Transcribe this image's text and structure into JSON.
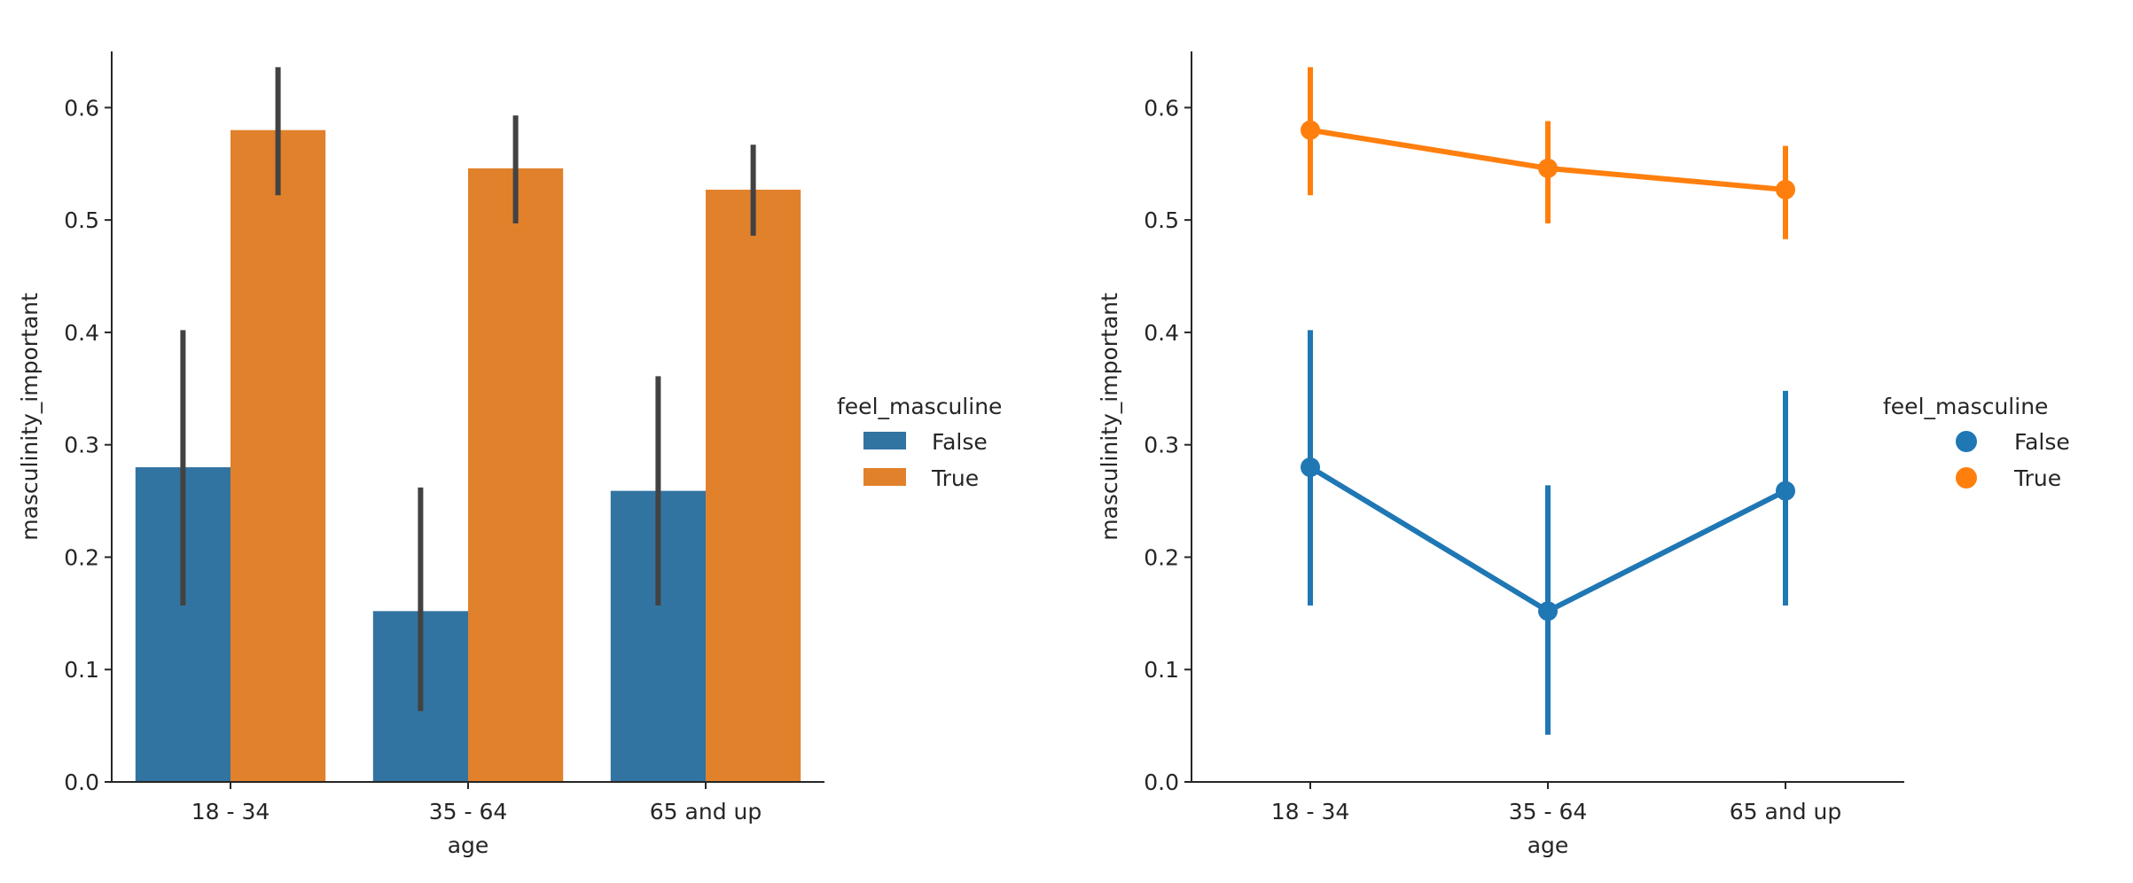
{
  "chart_data": [
    {
      "type": "bar",
      "title": "",
      "xlabel": "age",
      "ylabel": "masculinity_important",
      "categories": [
        "18 - 34",
        "35 - 64",
        "65 and up"
      ],
      "ylim": [
        0,
        0.65
      ],
      "yticks": [
        0.0,
        0.1,
        0.2,
        0.3,
        0.4,
        0.5,
        0.6
      ],
      "error_bars": true,
      "legend": {
        "title": "feel_masculine",
        "placement": "center-right"
      },
      "series": [
        {
          "name": "False",
          "color": "#3274a1",
          "values": [
            0.28,
            0.152,
            0.259
          ],
          "ci": [
            [
              0.157,
              0.402
            ],
            [
              0.063,
              0.262
            ],
            [
              0.157,
              0.361
            ]
          ]
        },
        {
          "name": "True",
          "color": "#e1812c",
          "values": [
            0.58,
            0.546,
            0.527
          ],
          "ci": [
            [
              0.522,
              0.636
            ],
            [
              0.497,
              0.593
            ],
            [
              0.486,
              0.567
            ]
          ]
        }
      ]
    },
    {
      "type": "line",
      "title": "",
      "xlabel": "age",
      "ylabel": "masculinity_important",
      "categories": [
        "18 - 34",
        "35 - 64",
        "65 and up"
      ],
      "ylim": [
        0,
        0.65
      ],
      "yticks": [
        0.0,
        0.1,
        0.2,
        0.3,
        0.4,
        0.5,
        0.6
      ],
      "error_bars": true,
      "legend": {
        "title": "feel_masculine",
        "placement": "center-right"
      },
      "series": [
        {
          "name": "False",
          "color": "#1f77b4",
          "values": [
            0.28,
            0.152,
            0.259
          ],
          "ci": [
            [
              0.157,
              0.402
            ],
            [
              0.042,
              0.264
            ],
            [
              0.157,
              0.348
            ]
          ]
        },
        {
          "name": "True",
          "color": "#ff7f0e",
          "values": [
            0.58,
            0.546,
            0.527
          ],
          "ci": [
            [
              0.522,
              0.636
            ],
            [
              0.497,
              0.588
            ],
            [
              0.483,
              0.566
            ]
          ]
        }
      ]
    }
  ]
}
